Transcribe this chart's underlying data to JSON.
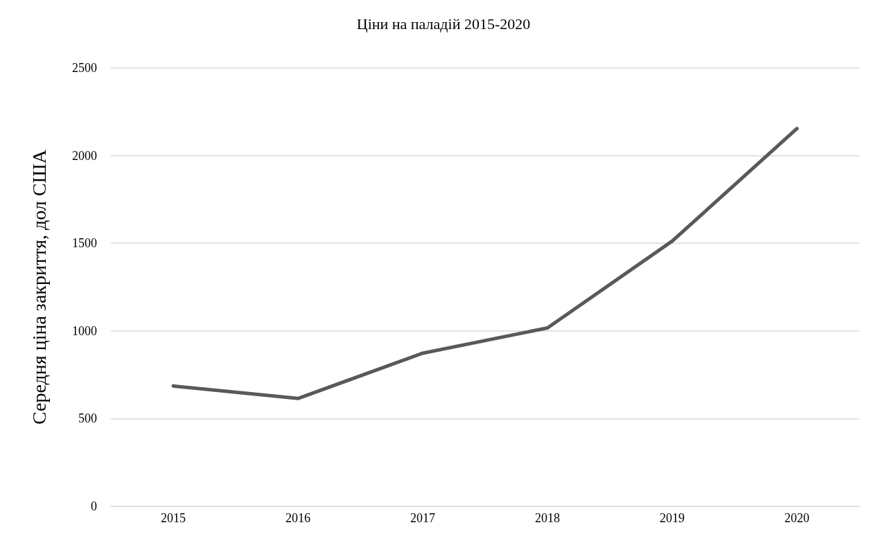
{
  "chart_data": {
    "type": "line",
    "title": "Ціни на паладій 2015-2020",
    "ylabel": "Середня ціна закриття, дол США",
    "categories": [
      "2015",
      "2016",
      "2017",
      "2018",
      "2019",
      "2020"
    ],
    "series": [
      {
        "color": "#595959",
        "values": [
          686,
          615,
          873,
          1017,
          1512,
          2154
        ]
      }
    ],
    "ylim": [
      0,
      2500
    ],
    "yticks": [
      0,
      500,
      1000,
      1500,
      2000,
      2500
    ],
    "grid": "y",
    "marker": "none",
    "line_style": "solid"
  }
}
